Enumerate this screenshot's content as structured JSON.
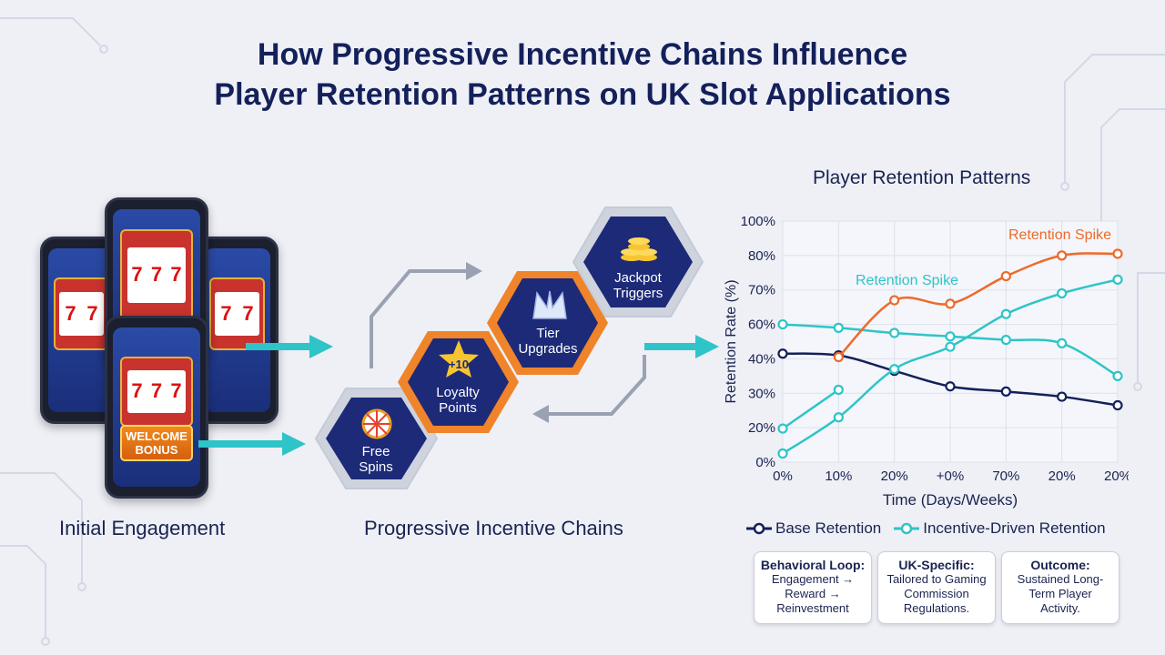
{
  "title": {
    "line1": "How Progressive Incentive Chains Influence",
    "line2": "Player Retention Patterns on UK Slot Applications"
  },
  "phones": {
    "welcome_line1": "WELCOME",
    "welcome_line2": "BONUS",
    "reel_symbol": "7"
  },
  "sections": {
    "initial": "Initial Engagement",
    "chains": "Progressive Incentive Chains"
  },
  "incentives": [
    {
      "line1": "Free",
      "line2": "Spins",
      "icon": "wheel-icon"
    },
    {
      "line1": "Loyalty",
      "line2": "Points",
      "icon": "star-icon",
      "badge": "+10"
    },
    {
      "line1": "Tier",
      "line2": "Upgrades",
      "icon": "crown-icon"
    },
    {
      "line1": "Jackpot",
      "line2": "Triggers",
      "icon": "coins-icon"
    }
  ],
  "colors": {
    "navy": "#14205a",
    "teal": "#2ec4c8",
    "orange": "#ee6a2a",
    "hex_fill": "#1c2a78"
  },
  "chart_data": {
    "type": "line",
    "title": "Player Retention Patterns",
    "xlabel": "Time (Days/Weeks)",
    "ylabel": "Retention Rate (%)",
    "x_ticks": [
      "0%",
      "10%",
      "20%",
      "+0%",
      "70%",
      "20%",
      "20%"
    ],
    "y_ticks": [
      "0%",
      "20%",
      "30%",
      "40%",
      "60%",
      "70%",
      "80%",
      "100%"
    ],
    "series": [
      {
        "name": "Base Retention",
        "color": "#14205a",
        "values": [
          43,
          42,
          36.5,
          32,
          30.5,
          29,
          26.5
        ]
      },
      {
        "name": "Incentive-Driven Retention",
        "color": "#2ec4c8",
        "values": [
          5,
          23,
          37,
          47,
          63,
          69,
          73
        ]
      },
      {
        "name": "",
        "color": "#2ec4c8",
        "values": [
          60,
          58,
          55,
          53,
          51,
          49,
          35
        ]
      },
      {
        "name": "",
        "color": "#ee6a2a",
        "values": [
          null,
          41,
          67,
          66,
          74,
          80,
          81
        ]
      },
      {
        "name": "",
        "color": "#2ec4c8",
        "values": [
          19.5,
          31,
          null,
          null,
          null,
          null,
          null
        ]
      }
    ],
    "annotations": [
      {
        "text": "Retention Spike",
        "color": "#2ec4c8"
      },
      {
        "text": "Retention Spike",
        "color": "#ee6a2a"
      }
    ],
    "legend": [
      {
        "name": "Base Retention",
        "color": "#14205a"
      },
      {
        "name": "Incentive-Driven Retention",
        "color": "#2ec4c8"
      }
    ]
  },
  "info_boxes": [
    {
      "title": "Behavioral Loop:",
      "lines": [
        "Engagement →",
        "Reward →",
        "Reinvestment"
      ]
    },
    {
      "title": "UK-Specific:",
      "lines": [
        "Tailored to Gaming",
        "Commission",
        "Regulations."
      ]
    },
    {
      "title": "Outcome:",
      "lines": [
        "Sustained Long-",
        "Term Player",
        "Activity."
      ]
    }
  ]
}
